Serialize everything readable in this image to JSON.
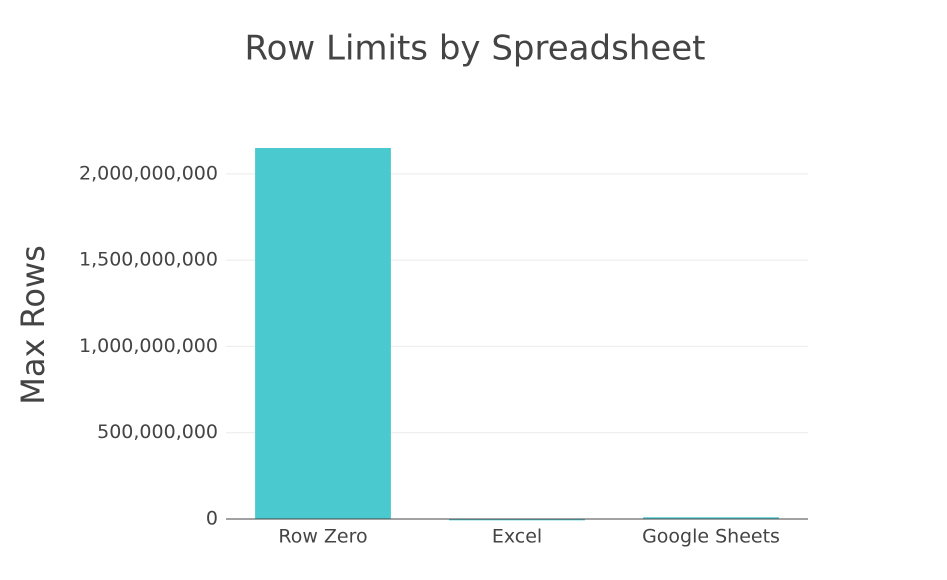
{
  "chart_data": {
    "type": "bar",
    "title": "Row Limits by Spreadsheet",
    "y_label": "Max Rows",
    "categories": [
      "Row Zero",
      "Excel",
      "Google Sheets"
    ],
    "values": [
      2150000000,
      1000000,
      10000000
    ],
    "color": "#4ac9ce",
    "ylim": [
      0,
      2260000000
    ],
    "yticks": [
      0,
      {
        "value": 500000000,
        "label": "500,000,000"
      },
      {
        "value": 1000000000,
        "label": "1,000,000,000"
      },
      {
        "value": 1500000000,
        "label": "1,500,000,000"
      },
      {
        "value": 2000000000,
        "label": "2,000,000,000"
      }
    ],
    "grid": true
  }
}
